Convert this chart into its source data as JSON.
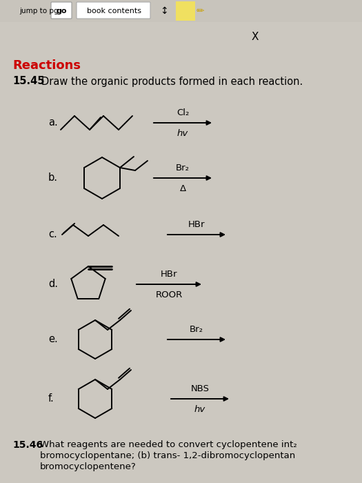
{
  "bg_color": "#ccc8c0",
  "header_bg": "#c8c4bc",
  "title": "Reactions",
  "title_color": "#cc0000",
  "problem_num": "15.45",
  "problem_text": "Draw the organic products formed in each reaction.",
  "x_label": "X",
  "reactions": [
    {
      "label": "a.",
      "top": "Cl₂",
      "bot": "hv"
    },
    {
      "label": "b.",
      "top": "Br₂",
      "bot": "Δ"
    },
    {
      "label": "c.",
      "top": "HBr",
      "bot": ""
    },
    {
      "label": "d.",
      "top": "HBr",
      "bot": "ROOR"
    },
    {
      "label": "e.",
      "top": "Br₂",
      "bot": ""
    },
    {
      "label": "f.",
      "top": "NBS",
      "bot": "hv"
    }
  ],
  "bottom_num": "15.46",
  "bottom_line1": "What reagents are needed to convert cyclopentene int₂",
  "bottom_line2": "bromocyclopentane; (b) trans- 1,2-dibromocyclopentan",
  "bottom_line3": "bromocyclopentene?"
}
